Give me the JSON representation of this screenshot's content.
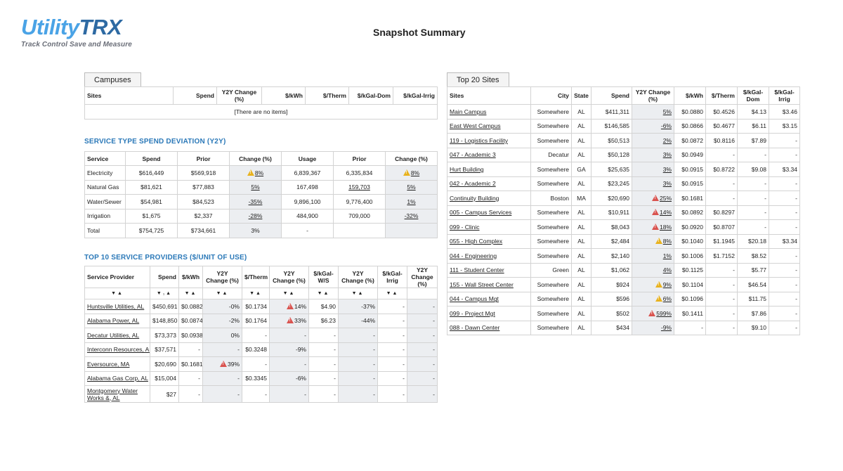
{
  "logo": {
    "brand_a": "Utility",
    "brand_b": "TRX",
    "tagline": "Track Control Save and Measure"
  },
  "page_title": "Snapshot Summary",
  "campuses": {
    "tab": "Campuses",
    "headers": [
      "Sites",
      "Spend",
      "Y2Y Change (%)",
      "$/kWh",
      "$/Therm",
      "$/kGal-Dom",
      "$/kGal-Irrig"
    ],
    "empty": "[There are no items]"
  },
  "deviation": {
    "title": "SERVICE TYPE SPEND DEVIATION (Y2Y)",
    "headers": [
      "Service",
      "Spend",
      "Prior",
      "Change (%)",
      "Usage",
      "Prior",
      "Change (%)"
    ],
    "rows": [
      [
        "Electricity",
        "$616,449",
        "$569,918",
        "8%",
        "6,839,367",
        "6,335,834",
        "8%"
      ],
      [
        "Natural Gas",
        "$81,621",
        "$77,883",
        "5%",
        "167,498",
        "159,703",
        "5%"
      ],
      [
        "Water/Sewer",
        "$54,981",
        "$84,523",
        "-35%",
        "9,896,100",
        "9,776,400",
        "1%"
      ],
      [
        "Irrigation",
        "$1,675",
        "$2,337",
        "-28%",
        "484,900",
        "709,000",
        "-32%"
      ],
      [
        "Total",
        "$754,725",
        "$734,661",
        "3%",
        "-",
        "",
        ""
      ]
    ]
  },
  "providers": {
    "title": "TOP 10 SERVICE PROVIDERS ($/UNIT OF USE)",
    "headers": [
      "Service Provider",
      "Spend",
      "$/kWh",
      "Y2Y Change (%)",
      "$/Therm",
      "Y2Y Change (%)",
      "$/kGal-W/S",
      "Y2Y Change (%)",
      "$/kGal-Irrig",
      "Y2Y Change (%)"
    ],
    "sort_row": [
      "▼▲",
      "▼₁▲",
      "▼▲",
      "▼▲",
      "▼▲",
      "▼▲",
      "▼▲",
      "▼▲",
      "▼▲",
      ""
    ],
    "rows": [
      [
        "Huntsville Utilities, AL",
        "$450,691",
        "$0.0882",
        "-0%",
        "$0.1734",
        "14%",
        "$4.90",
        "-37%",
        "-",
        "-"
      ],
      [
        "Alabama Power, AL",
        "$148,850",
        "$0.0874",
        "-2%",
        "$0.1764",
        "33%",
        "$6.23",
        "-44%",
        "-",
        "-"
      ],
      [
        "Decatur Utilities, AL",
        "$73,373",
        "$0.0938",
        "0%",
        "-",
        "-",
        "-",
        "-",
        "-",
        "-"
      ],
      [
        "Interconn Resources, AL",
        "$37,571",
        "-",
        "-",
        "$0.3248",
        "-9%",
        "-",
        "-",
        "-",
        "-"
      ],
      [
        "Eversource, MA",
        "$20,690",
        "$0.1681",
        "39%",
        "-",
        "-",
        "-",
        "-",
        "-",
        "-"
      ],
      [
        "Alabama Gas Corp, AL",
        "$15,004",
        "-",
        "-",
        "$0.3345",
        "-6%",
        "-",
        "-",
        "-",
        "-"
      ],
      [
        "Montgomery Water Works &, AL",
        "$27",
        "-",
        "-",
        "-",
        "-",
        "-",
        "-",
        "-",
        "-"
      ]
    ]
  },
  "top20": {
    "tab": "Top 20 Sites",
    "headers": [
      "Sites",
      "City",
      "State",
      "Spend",
      "Y2Y Change (%)",
      "$/kWh",
      "$/Therm",
      "$/kGal-Dom",
      "$/kGal-Irrig"
    ],
    "rows": [
      [
        "Main Campus",
        "Somewhere",
        "AL",
        "$411,311",
        "5%",
        "$0.0880",
        "$0.4526",
        "$4.13",
        "$3.46"
      ],
      [
        "East West Campus",
        "Somewhere",
        "AL",
        "$146,585",
        "-6%",
        "$0.0866",
        "$0.4677",
        "$6.11",
        "$3.15"
      ],
      [
        "119 - Logistics Facility",
        "Somewhere",
        "AL",
        "$50,513",
        "2%",
        "$0.0872",
        "$0.8116",
        "$7.89",
        "-"
      ],
      [
        "047 - Academic 3",
        "Decatur",
        "AL",
        "$50,128",
        "3%",
        "$0.0949",
        "-",
        "-",
        "-"
      ],
      [
        "Hurt Building",
        "Somewhere",
        "GA",
        "$25,635",
        "3%",
        "$0.0915",
        "$0.8722",
        "$9.08",
        "$3.34"
      ],
      [
        "042 - Academic 2",
        "Somewhere",
        "AL",
        "$23,245",
        "3%",
        "$0.0915",
        "-",
        "-",
        "-"
      ],
      [
        "Continuity Building",
        "Boston",
        "MA",
        "$20,690",
        "25%",
        "$0.1681",
        "-",
        "-",
        "-"
      ],
      [
        "005 - Campus Services",
        "Somewhere",
        "AL",
        "$10,911",
        "14%",
        "$0.0892",
        "$0.8297",
        "-",
        "-"
      ],
      [
        "099 - Clinic",
        "Somewhere",
        "AL",
        "$8,043",
        "18%",
        "$0.0920",
        "$0.8707",
        "-",
        "-"
      ],
      [
        "055 - High Complex",
        "Somewhere",
        "AL",
        "$2,484",
        "8%",
        "$0.1040",
        "$1.1945",
        "$20.18",
        "$3.34"
      ],
      [
        "044 - Engineering",
        "Somewhere",
        "AL",
        "$2,140",
        "1%",
        "$0.1006",
        "$1.7152",
        "$8.52",
        "-"
      ],
      [
        "111 - Student Center",
        "Green",
        "AL",
        "$1,062",
        "4%",
        "$0.1125",
        "-",
        "$5.77",
        "-"
      ],
      [
        "155 - Wall Street Center",
        "Somewhere",
        "AL",
        "$924",
        "9%",
        "$0.1104",
        "-",
        "$46.54",
        "-"
      ],
      [
        "044 - Campus Mgt",
        "Somewhere",
        "AL",
        "$596",
        "6%",
        "$0.1096",
        "-",
        "$11.75",
        "-"
      ],
      [
        "099 - Project Mgt",
        "Somewhere",
        "AL",
        "$502",
        "599%",
        "$0.1411",
        "-",
        "$7.86",
        "-"
      ],
      [
        "088 - Dawn Center",
        "Somewhere",
        "AL",
        "$434",
        "-9%",
        "-",
        "-",
        "$9.10",
        "-"
      ]
    ]
  },
  "colors": {
    "warn_yellow": "#e8b21e",
    "warn_red": "#d9534f",
    "section_blue": "#2a78b8"
  },
  "icons": {
    "warning": "warning-triangle-icon",
    "sort": "sort-arrows-icon"
  }
}
